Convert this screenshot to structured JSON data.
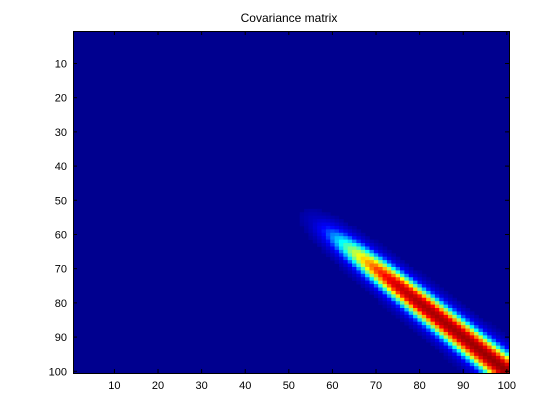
{
  "chart_data": {
    "type": "heatmap",
    "title": "Covariance matrix",
    "xlabel": "",
    "ylabel": "",
    "xlim": [
      0.5,
      100.5
    ],
    "ylim": [
      0.5,
      100.5
    ],
    "y_reversed": true,
    "x_ticks": [
      10,
      20,
      30,
      40,
      50,
      60,
      70,
      80,
      90,
      100
    ],
    "y_ticks": [
      10,
      20,
      30,
      40,
      50,
      60,
      70,
      80,
      90,
      100
    ],
    "grid": false,
    "colormap": "jet",
    "colormap_stops": [
      "#00008f",
      "#0000ff",
      "#00ffff",
      "#ffff00",
      "#ff0000",
      "#800000"
    ],
    "matrix_size": 100,
    "structure": {
      "description_free": true,
      "diagonal_values": [
        {
          "index": 52,
          "value": 0.0
        },
        {
          "index": 56,
          "value": 0.1
        },
        {
          "index": 60,
          "value": 0.3
        },
        {
          "index": 65,
          "value": 0.55
        },
        {
          "index": 70,
          "value": 0.75
        },
        {
          "index": 75,
          "value": 0.88
        },
        {
          "index": 80,
          "value": 0.93
        },
        {
          "index": 90,
          "value": 0.95
        },
        {
          "index": 100,
          "value": 0.97
        }
      ],
      "onset_index": 52,
      "bandwidth_at_onset": 3,
      "bandwidth_at_end": 4,
      "color_limits": [
        0,
        1
      ]
    }
  }
}
